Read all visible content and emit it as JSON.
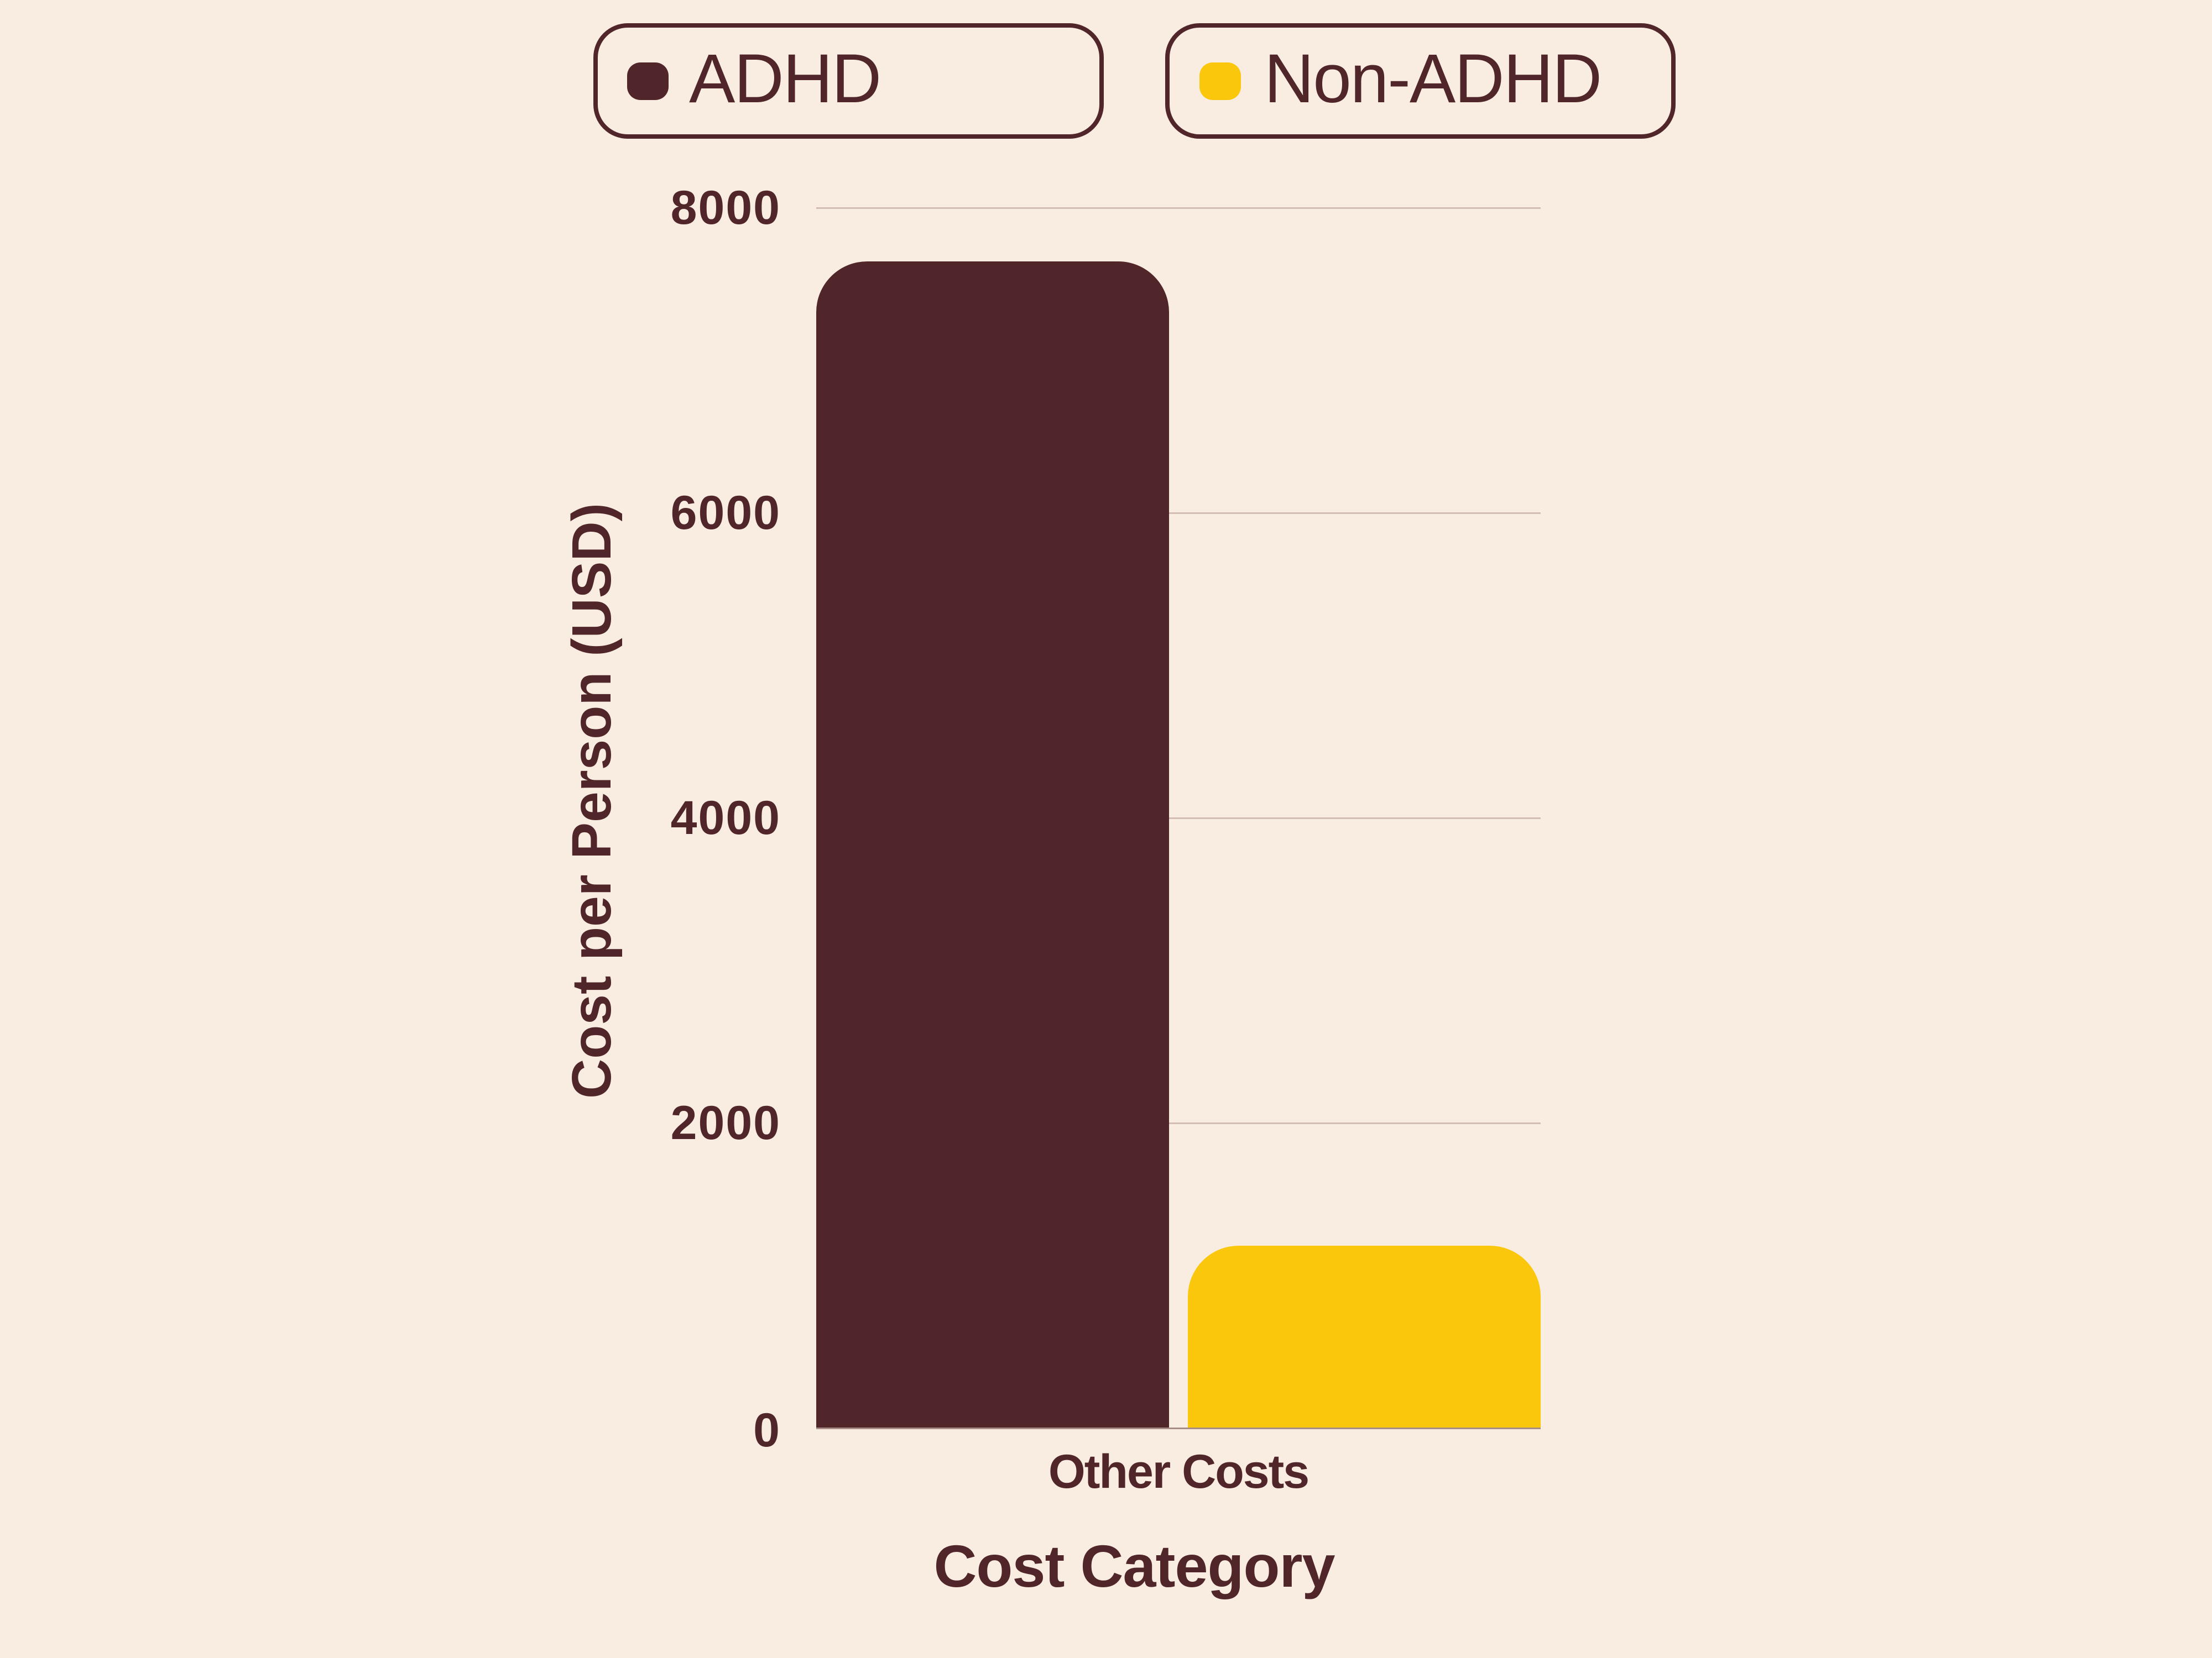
{
  "legend": {
    "items": [
      {
        "label": "ADHD",
        "color": "#51262A"
      },
      {
        "label": "Non-ADHD",
        "color": "#FBC70D"
      }
    ]
  },
  "axes": {
    "y_title": "Cost per Person (USD)",
    "x_title": "Cost Category",
    "y_ticks": [
      "0",
      "2000",
      "4000",
      "6000",
      "8000"
    ]
  },
  "colors": {
    "background": "#F9EDE1",
    "text": "#51262A",
    "adhd": "#51262A",
    "non_adhd": "#FBC70D",
    "gridline": "#D3BDB3"
  },
  "chart_data": {
    "type": "bar",
    "title": "",
    "categories": [
      "Other Costs"
    ],
    "series": [
      {
        "name": "ADHD",
        "values": [
          7650
        ],
        "color": "#51262A"
      },
      {
        "name": "Non-ADHD",
        "values": [
          1200
        ],
        "color": "#FBC70D"
      }
    ],
    "xlabel": "Cost Category",
    "ylabel": "Cost per Person (USD)",
    "ylim": [
      0,
      8000
    ],
    "yticks": [
      0,
      2000,
      4000,
      6000,
      8000
    ],
    "grid": true,
    "legend_position": "top"
  }
}
